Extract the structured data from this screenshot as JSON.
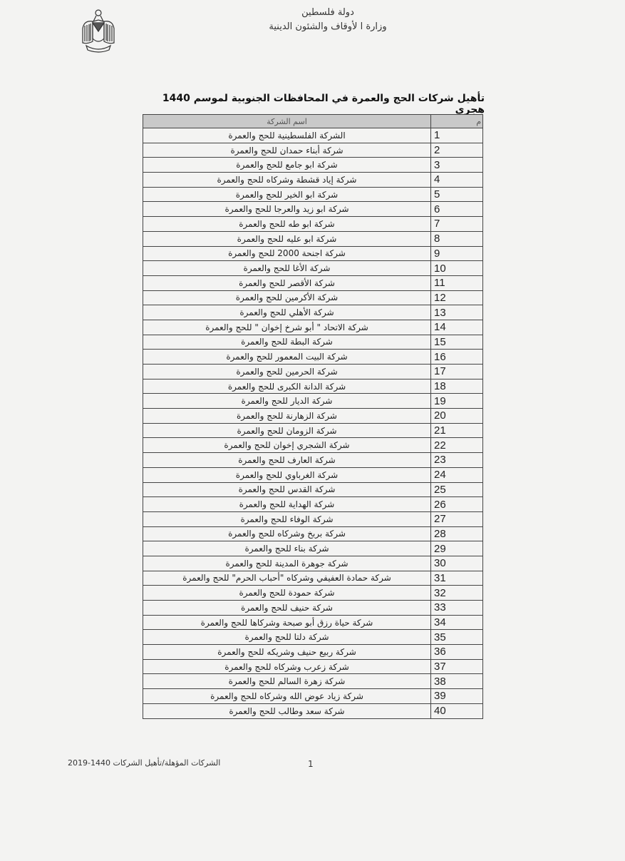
{
  "header": {
    "line1": "دولة فلسطين",
    "line2": "وزارة ا لأوقاف والشئون الدينية",
    "emblem_icon": "palestine-eagle-emblem"
  },
  "title": "تأهيل شركات الحج والعمرة في المحافظات الجنوبية لموسم 1440 هجري",
  "table": {
    "columns": [
      "م",
      "اسم الشركة"
    ],
    "rows": [
      [
        "1",
        "الشركة الفلسطينية للحج والعمرة"
      ],
      [
        "2",
        "شركة أبناء حمدان للحج والعمرة"
      ],
      [
        "3",
        "شركة ابو جامع للحج والعمرة"
      ],
      [
        "4",
        "شركة إياد قشطة وشركاه  للحج والعمرة"
      ],
      [
        "5",
        "شركة ابو الخير للحج والعمرة"
      ],
      [
        "6",
        "شركة ابو زيد والعرجا للحج والعمرة"
      ],
      [
        "7",
        "شركة ابو طه للحج والعمرة"
      ],
      [
        "8",
        "شركة ابو عليه  للحج والعمرة"
      ],
      [
        "9",
        "شركة اجنحة 2000 للحج والعمرة"
      ],
      [
        "10",
        "شركة الأغا للحج والعمرة"
      ],
      [
        "11",
        "شركة الأقصر للحج والعمرة"
      ],
      [
        "12",
        "شركة الأكرمين للحج والعمرة"
      ],
      [
        "13",
        "شركة الأهلي للحج والعمرة"
      ],
      [
        "14",
        "شركة الاتحاد \" أبو شرخ إخوان \" للحج والعمرة"
      ],
      [
        "15",
        "شركة البطة للحج والعمرة"
      ],
      [
        "16",
        "شركة البيت المعمور للحج والعمرة"
      ],
      [
        "17",
        "شركة الحرمين للحج والعمرة"
      ],
      [
        "18",
        "شركة الدانة الكبرى للحج والعمرة"
      ],
      [
        "19",
        "شركة الديار للحج والعمرة"
      ],
      [
        "20",
        "شركة الزهارنة للحج والعمرة"
      ],
      [
        "21",
        "شركة الزومان للحج والعمرة"
      ],
      [
        "22",
        "شركة الشجري إخوان  للحج والعمرة"
      ],
      [
        "23",
        "شركة العارف للحج والعمرة"
      ],
      [
        "24",
        "شركة الغرباوي للحج والعمرة"
      ],
      [
        "25",
        "شركة القدس للحج والعمرة"
      ],
      [
        "26",
        "شركة الهداية للحج والعمرة"
      ],
      [
        "27",
        "شركة الوفاء للحج والعمرة"
      ],
      [
        "28",
        "شركة بربخ وشركاه  للحج والعمرة"
      ],
      [
        "29",
        "شركة بناء للحج والعمرة"
      ],
      [
        "30",
        "شركة جوهرة المدينة للحج والعمرة"
      ],
      [
        "31",
        "شركة حمادة العفيفي وشركاه  \"أحباب الحرم\" للحج والعمرة"
      ],
      [
        "32",
        "شركة حمودة للحج والعمرة"
      ],
      [
        "33",
        "شركة حنيف للحج والعمرة"
      ],
      [
        "34",
        "شركة حياة رزق أبو صبحة  وشركاها للحج والعمرة"
      ],
      [
        "35",
        "شركة دلتا للحج والعمرة"
      ],
      [
        "36",
        "شركة ربيع حنيف وشريكه  للحج والعمرة"
      ],
      [
        "37",
        "شركة زعرب  وشركاه للحج والعمرة"
      ],
      [
        "38",
        "شركة زهرة السالم للحج والعمرة"
      ],
      [
        "39",
        "شركة زياد عوض الله وشركاه للحج والعمرة"
      ],
      [
        "40",
        "شركة سعد وطالب للحج والعمرة"
      ]
    ]
  },
  "footer": {
    "page_number": "1",
    "document_label": "الشركات المؤهلة/تأهيل الشركات 1440-2019"
  }
}
